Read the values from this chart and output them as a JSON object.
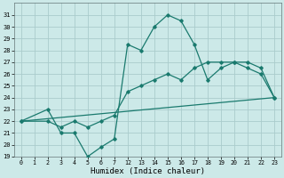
{
  "xlabel": "Humidex (Indice chaleur)",
  "bg_color": "#cce9e8",
  "grid_color": "#aacccc",
  "line_color": "#1a7a6e",
  "ylim": [
    19,
    32
  ],
  "ytick_vals": [
    19,
    20,
    21,
    22,
    23,
    24,
    25,
    26,
    27,
    28,
    29,
    30,
    31
  ],
  "x_labels": [
    "0",
    "1",
    "2",
    "3",
    "4",
    "5",
    "6",
    "7",
    "12",
    "13",
    "14",
    "15",
    "16",
    "17",
    "18",
    "19",
    "20",
    "21",
    "22",
    "23"
  ],
  "series1_idx": [
    0,
    2,
    3,
    4,
    5,
    6,
    7,
    8,
    9,
    10,
    11,
    12,
    13,
    14,
    15,
    16,
    17,
    18,
    19
  ],
  "series1_y": [
    22,
    23,
    21,
    21,
    19,
    19.8,
    20.5,
    28.5,
    28,
    30,
    31,
    30.5,
    28.5,
    25.5,
    26.5,
    27,
    27,
    26.5,
    24
  ],
  "series2_idx": [
    0,
    2,
    3,
    4,
    5,
    6,
    7,
    8,
    9,
    10,
    11,
    12,
    13,
    14,
    15,
    16,
    17,
    18,
    19
  ],
  "series2_y": [
    22,
    22.0,
    21.5,
    22,
    21.5,
    22.0,
    22.5,
    24.5,
    25.0,
    25.5,
    26.0,
    25.5,
    26.5,
    27.0,
    27.0,
    27.0,
    26.5,
    26.0,
    24.0
  ],
  "series3_idx": [
    0,
    19
  ],
  "series3_y": [
    22,
    24
  ]
}
